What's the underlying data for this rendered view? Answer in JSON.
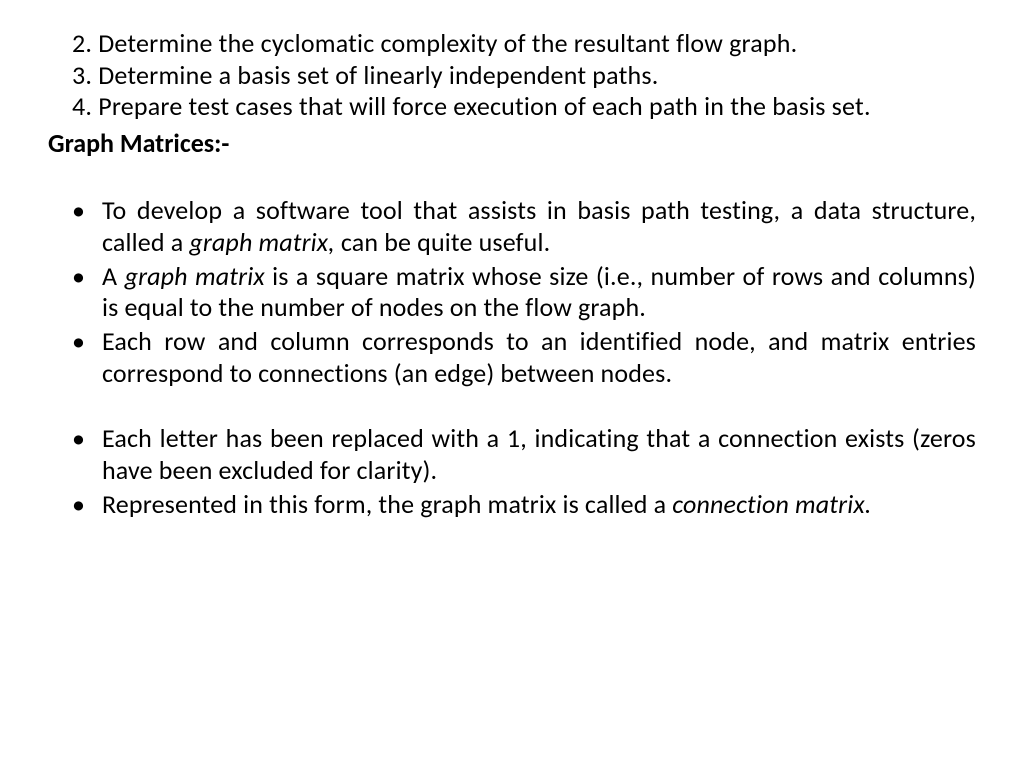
{
  "numbered": {
    "item2": "2. Determine the cyclomatic complexity of the resultant flow graph.",
    "item3": "3. Determine a basis set of linearly independent paths.",
    "item4": "4. Prepare test cases that will force execution of each path in the basis  set."
  },
  "heading": "Graph Matrices:-",
  "bullets": {
    "b1_a": "To develop a software tool that assists in basis path testing, a data structure, called a ",
    "b1_i": "graph matrix,",
    "b1_b": " can be quite useful.",
    "b2_a": "A ",
    "b2_i": "graph matrix",
    "b2_b": " is a square matrix whose size (i.e., number of rows and columns) is equal to the number of nodes on the flow graph.",
    "b3": "Each row and column corresponds to an identified node, and matrix entries correspond to connections (an edge) between nodes.",
    "b4": "Each letter has been replaced with a 1, indicating that a connection exists (zeros have been excluded for clarity).",
    "b5_a": "Represented in this form, the graph matrix is called a ",
    "b5_i": "connection matrix."
  },
  "style": {
    "font_family": "Calibri, Segoe UI, Arial, sans-serif",
    "font_size_pt": 20,
    "line_height": 1.22,
    "text_color": "#000000",
    "background_color": "#ffffff",
    "bullet_marker": "•",
    "heading_weight": 700
  }
}
